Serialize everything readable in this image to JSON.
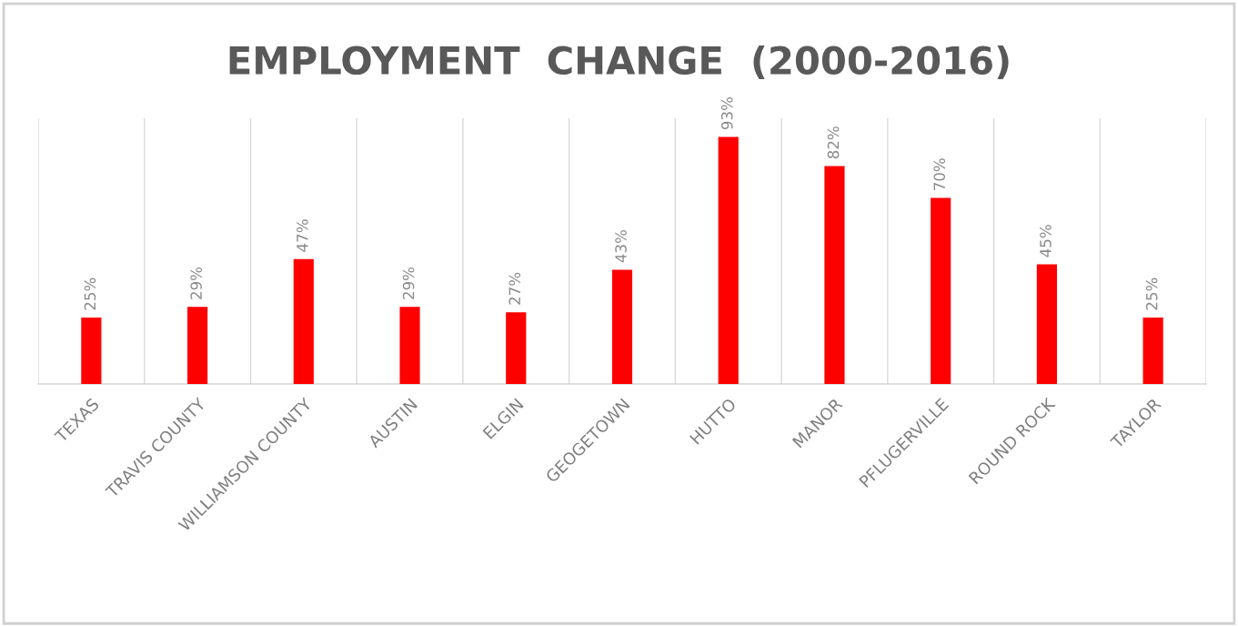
{
  "chart_data": {
    "type": "bar",
    "title": "EMPLOYMENT  CHANGE  (2000-2016)",
    "categories": [
      "TEXAS",
      "TRAVIS COUNTY",
      "WILLIAMSON COUNTY",
      "AUSTIN",
      "ELGIN",
      "GEOGETOWN",
      "HUTTO",
      "MANOR",
      "PFLUGERVILLE",
      "ROUND ROCK",
      "TAYLOR"
    ],
    "values": [
      25,
      29,
      47,
      29,
      27,
      43,
      93,
      82,
      70,
      45,
      25
    ],
    "value_labels": [
      "25%",
      "29%",
      "47%",
      "29%",
      "27%",
      "43%",
      "93%",
      "82%",
      "70%",
      "45%",
      "25%"
    ],
    "color": "#ff0000",
    "ylim": [
      0,
      100
    ],
    "tick_labels": "x",
    "grid": "x"
  }
}
